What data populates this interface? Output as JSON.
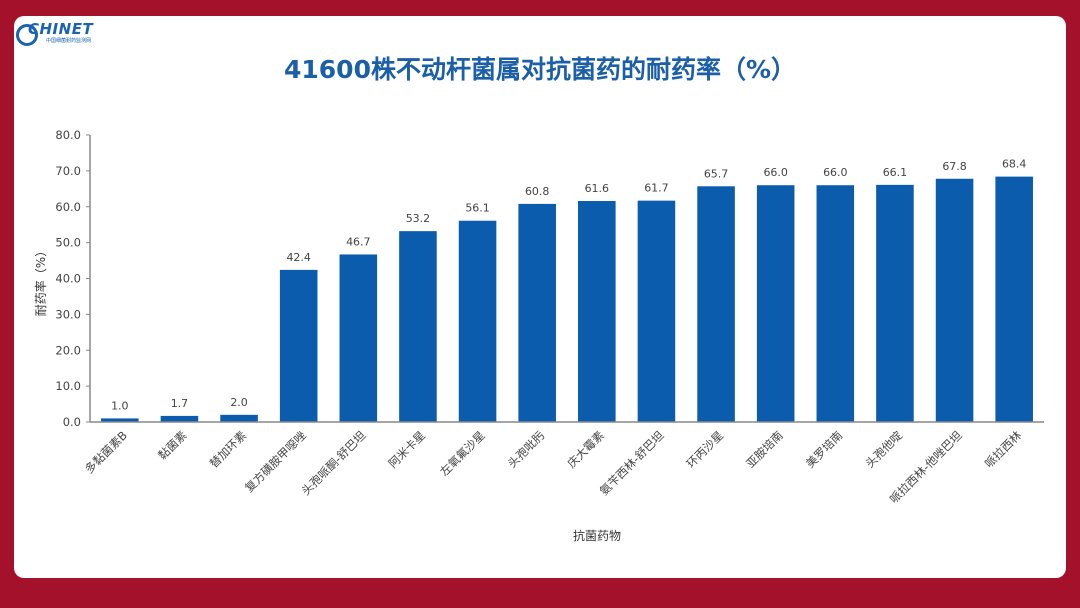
{
  "logo": {
    "text": "CHINET",
    "subtitle": "中国细菌耐药监测网"
  },
  "colors": {
    "bar": "#0b5cad",
    "frame": "#a3122a",
    "title": "#1b5fa8"
  },
  "chart_data": {
    "type": "bar",
    "title": "41600株不动杆菌属对抗菌药的耐药率（%）",
    "xlabel": "抗菌药物",
    "ylabel": "耐药率（%）",
    "ylim": [
      0,
      80
    ],
    "yticks": [
      "0.0",
      "10.0",
      "20.0",
      "30.0",
      "40.0",
      "50.0",
      "60.0",
      "70.0",
      "80.0"
    ],
    "categories": [
      "多黏菌素B",
      "黏菌素",
      "替加环素",
      "复方磺胺甲噁唑",
      "头孢哌酮-舒巴坦",
      "阿米卡星",
      "左氧氟沙星",
      "头孢吡肟",
      "庆大霉素",
      "氨苄西林-舒巴坦",
      "环丙沙星",
      "亚胺培南",
      "美罗培南",
      "头孢他啶",
      "哌拉西林-他唑巴坦",
      "哌拉西林"
    ],
    "values": [
      1.0,
      1.7,
      2.0,
      42.4,
      46.7,
      53.2,
      56.1,
      60.8,
      61.6,
      61.7,
      65.7,
      66.0,
      66.0,
      66.1,
      67.8,
      68.4
    ],
    "value_labels": [
      "1.0",
      "1.7",
      "2.0",
      "42.4",
      "46.7",
      "53.2",
      "56.1",
      "60.8",
      "61.6",
      "61.7",
      "65.7",
      "66.0",
      "66.0",
      "66.1",
      "67.8",
      "68.4"
    ],
    "grid": false,
    "legend": "none"
  }
}
